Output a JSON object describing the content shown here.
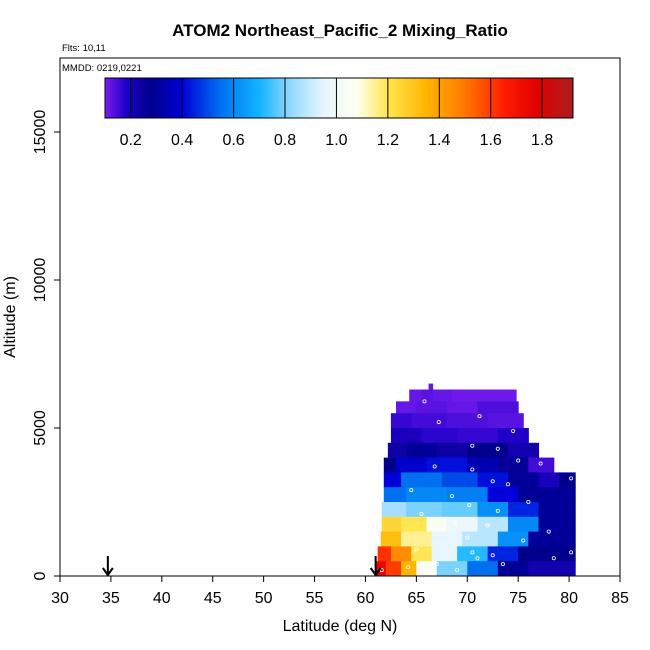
{
  "chart_data": {
    "type": "heatmap",
    "title": "ATOM2 Northeast_Pacific_2 Mixing_Ratio",
    "annotations": {
      "flights": "Flts: 10,11",
      "dates": "MMDD: 0219,0221"
    },
    "xlabel": "Latitude (deg N)",
    "ylabel": "Altitude (m)",
    "xlim": [
      30,
      85
    ],
    "ylim": [
      0,
      17500
    ],
    "x_ticks": [
      "30",
      "35",
      "40",
      "45",
      "50",
      "55",
      "60",
      "65",
      "70",
      "75",
      "80",
      "85"
    ],
    "y_ticks": [
      "0",
      "5000",
      "10000",
      "15000"
    ],
    "colorbar": {
      "range": [
        0.1,
        1.92
      ],
      "ticks": [
        "0.2",
        "0.4",
        "0.6",
        "0.8",
        "1.0",
        "1.2",
        "1.4",
        "1.6",
        "1.8"
      ],
      "stops": [
        {
          "v": 0.1,
          "c": "#7a1ef0"
        },
        {
          "v": 0.18,
          "c": "#2000c8"
        },
        {
          "v": 0.28,
          "c": "#00008c"
        },
        {
          "v": 0.4,
          "c": "#0000d8"
        },
        {
          "v": 0.55,
          "c": "#0070f0"
        },
        {
          "v": 0.7,
          "c": "#10b4ff"
        },
        {
          "v": 0.82,
          "c": "#90d8ff"
        },
        {
          "v": 0.95,
          "c": "#e8f6ff"
        },
        {
          "v": 1.08,
          "c": "#fffff0"
        },
        {
          "v": 1.2,
          "c": "#ffe650"
        },
        {
          "v": 1.35,
          "c": "#ffb400"
        },
        {
          "v": 1.5,
          "c": "#ff7800"
        },
        {
          "v": 1.65,
          "c": "#ff1e00"
        },
        {
          "v": 1.78,
          "c": "#e00000"
        },
        {
          "v": 1.92,
          "c": "#aa1e1e"
        }
      ]
    },
    "arrows_at_latitude": [
      34.7,
      61.0
    ],
    "layers": [
      {
        "alt": [
          6300,
          6500
        ],
        "cells": [
          [
            66.2,
            66.6,
            0.12
          ]
        ]
      },
      {
        "alt": [
          5900,
          6300
        ],
        "cells": [
          [
            64.3,
            65.5,
            0.12
          ],
          [
            65.5,
            66.6,
            0.13
          ],
          [
            66.6,
            68.5,
            0.12
          ],
          [
            68.5,
            74.8,
            0.11
          ]
        ]
      },
      {
        "alt": [
          5500,
          5900
        ],
        "cells": [
          [
            63.0,
            65.0,
            0.12
          ],
          [
            65.0,
            68.0,
            0.13
          ],
          [
            68.0,
            71.0,
            0.12
          ],
          [
            71.0,
            75.0,
            0.14
          ]
        ]
      },
      {
        "alt": [
          5000,
          5500
        ],
        "cells": [
          [
            62.5,
            64.5,
            0.16
          ],
          [
            64.5,
            68.0,
            0.15
          ],
          [
            68.0,
            72.0,
            0.14
          ],
          [
            72.0,
            75.5,
            0.13
          ]
        ]
      },
      {
        "alt": [
          4500,
          5000
        ],
        "cells": [
          [
            62.5,
            65.5,
            0.2
          ],
          [
            65.5,
            69.0,
            0.17
          ],
          [
            69.0,
            73.0,
            0.16
          ],
          [
            73.0,
            76.0,
            0.18
          ]
        ]
      },
      {
        "alt": [
          4000,
          4500
        ],
        "cells": [
          [
            62.2,
            64.0,
            0.24
          ],
          [
            64.0,
            67.0,
            0.3
          ],
          [
            67.0,
            70.0,
            0.24
          ],
          [
            70.0,
            74.0,
            0.28
          ],
          [
            74.0,
            77.0,
            0.22
          ]
        ]
      },
      {
        "alt": [
          3500,
          4000
        ],
        "cells": [
          [
            61.8,
            63.0,
            0.28
          ],
          [
            63.0,
            66.0,
            0.38
          ],
          [
            66.0,
            70.0,
            0.42
          ],
          [
            70.0,
            73.0,
            0.34
          ],
          [
            73.0,
            76.0,
            0.26
          ],
          [
            76.0,
            78.5,
            0.15
          ]
        ]
      },
      {
        "alt": [
          3000,
          3500
        ],
        "cells": [
          [
            61.8,
            63.5,
            0.4
          ],
          [
            63.5,
            67.5,
            0.55
          ],
          [
            67.5,
            71.0,
            0.5
          ],
          [
            71.0,
            74.0,
            0.42
          ],
          [
            74.0,
            77.0,
            0.3
          ],
          [
            77.0,
            79.0,
            0.2
          ],
          [
            79.0,
            80.6,
            0.28
          ]
        ]
      },
      {
        "alt": [
          2500,
          3000
        ],
        "cells": [
          [
            61.8,
            64.0,
            0.55
          ],
          [
            64.0,
            68.0,
            0.6
          ],
          [
            68.0,
            72.0,
            0.58
          ],
          [
            72.0,
            75.0,
            0.4
          ],
          [
            75.0,
            80.6,
            0.3
          ]
        ]
      },
      {
        "alt": [
          2000,
          2500
        ],
        "cells": [
          [
            61.6,
            64.0,
            0.85
          ],
          [
            64.0,
            67.5,
            0.8
          ],
          [
            67.5,
            71.0,
            0.78
          ],
          [
            71.0,
            74.0,
            0.62
          ],
          [
            74.0,
            77.0,
            0.45
          ],
          [
            77.0,
            80.6,
            0.3
          ]
        ]
      },
      {
        "alt": [
          1500,
          2000
        ],
        "cells": [
          [
            61.6,
            63.5,
            1.25
          ],
          [
            63.5,
            66.0,
            1.2
          ],
          [
            66.0,
            68.0,
            1.05
          ],
          [
            68.0,
            71.0,
            0.98
          ],
          [
            71.0,
            74.0,
            0.88
          ],
          [
            74.0,
            77.0,
            0.6
          ],
          [
            77.0,
            80.6,
            0.3
          ]
        ]
      },
      {
        "alt": [
          1000,
          1500
        ],
        "cells": [
          [
            61.5,
            63.5,
            1.32
          ],
          [
            63.5,
            66.5,
            1.15
          ],
          [
            66.5,
            69.5,
            0.95
          ],
          [
            69.5,
            73.0,
            0.88
          ],
          [
            73.0,
            76.0,
            0.62
          ],
          [
            76.0,
            80.6,
            0.3
          ]
        ]
      },
      {
        "alt": [
          500,
          1000
        ],
        "cells": [
          [
            61.2,
            62.5,
            1.62
          ],
          [
            62.5,
            64.5,
            1.45
          ],
          [
            64.5,
            66.5,
            1.2
          ],
          [
            66.5,
            69.0,
            0.95
          ],
          [
            69.0,
            72.0,
            0.72
          ],
          [
            72.0,
            75.0,
            0.45
          ],
          [
            75.0,
            80.6,
            0.28
          ]
        ]
      },
      {
        "alt": [
          0,
          500
        ],
        "cells": [
          [
            61.0,
            62.0,
            1.75
          ],
          [
            62.0,
            63.5,
            1.6
          ],
          [
            63.5,
            65.0,
            1.35
          ],
          [
            65.0,
            67.0,
            1.05
          ],
          [
            67.0,
            70.0,
            0.8
          ],
          [
            70.0,
            73.0,
            0.55
          ],
          [
            73.0,
            76.0,
            0.3
          ],
          [
            76.0,
            80.6,
            0.22
          ]
        ]
      }
    ],
    "sample_points": [
      [
        65.8,
        5900
      ],
      [
        67.2,
        5200
      ],
      [
        71.2,
        5400
      ],
      [
        74.5,
        4900
      ],
      [
        70.5,
        4400
      ],
      [
        73.0,
        4300
      ],
      [
        75.0,
        3900
      ],
      [
        77.2,
        3800
      ],
      [
        66.8,
        3700
      ],
      [
        70.5,
        3600
      ],
      [
        72.5,
        3200
      ],
      [
        74.0,
        3100
      ],
      [
        80.2,
        3300
      ],
      [
        64.5,
        2900
      ],
      [
        68.5,
        2700
      ],
      [
        70.2,
        2400
      ],
      [
        73.0,
        2200
      ],
      [
        76.0,
        2500
      ],
      [
        65.5,
        2100
      ],
      [
        68.8,
        1800
      ],
      [
        72.0,
        1700
      ],
      [
        70.0,
        1300
      ],
      [
        75.5,
        1200
      ],
      [
        78.0,
        1500
      ],
      [
        65.0,
        900
      ],
      [
        70.5,
        800
      ],
      [
        72.5,
        700
      ],
      [
        71.0,
        600
      ],
      [
        64.2,
        300
      ],
      [
        67.0,
        400
      ],
      [
        69.0,
        200
      ],
      [
        73.5,
        400
      ],
      [
        78.5,
        600
      ],
      [
        80.2,
        800
      ],
      [
        61.6,
        200
      ]
    ]
  }
}
